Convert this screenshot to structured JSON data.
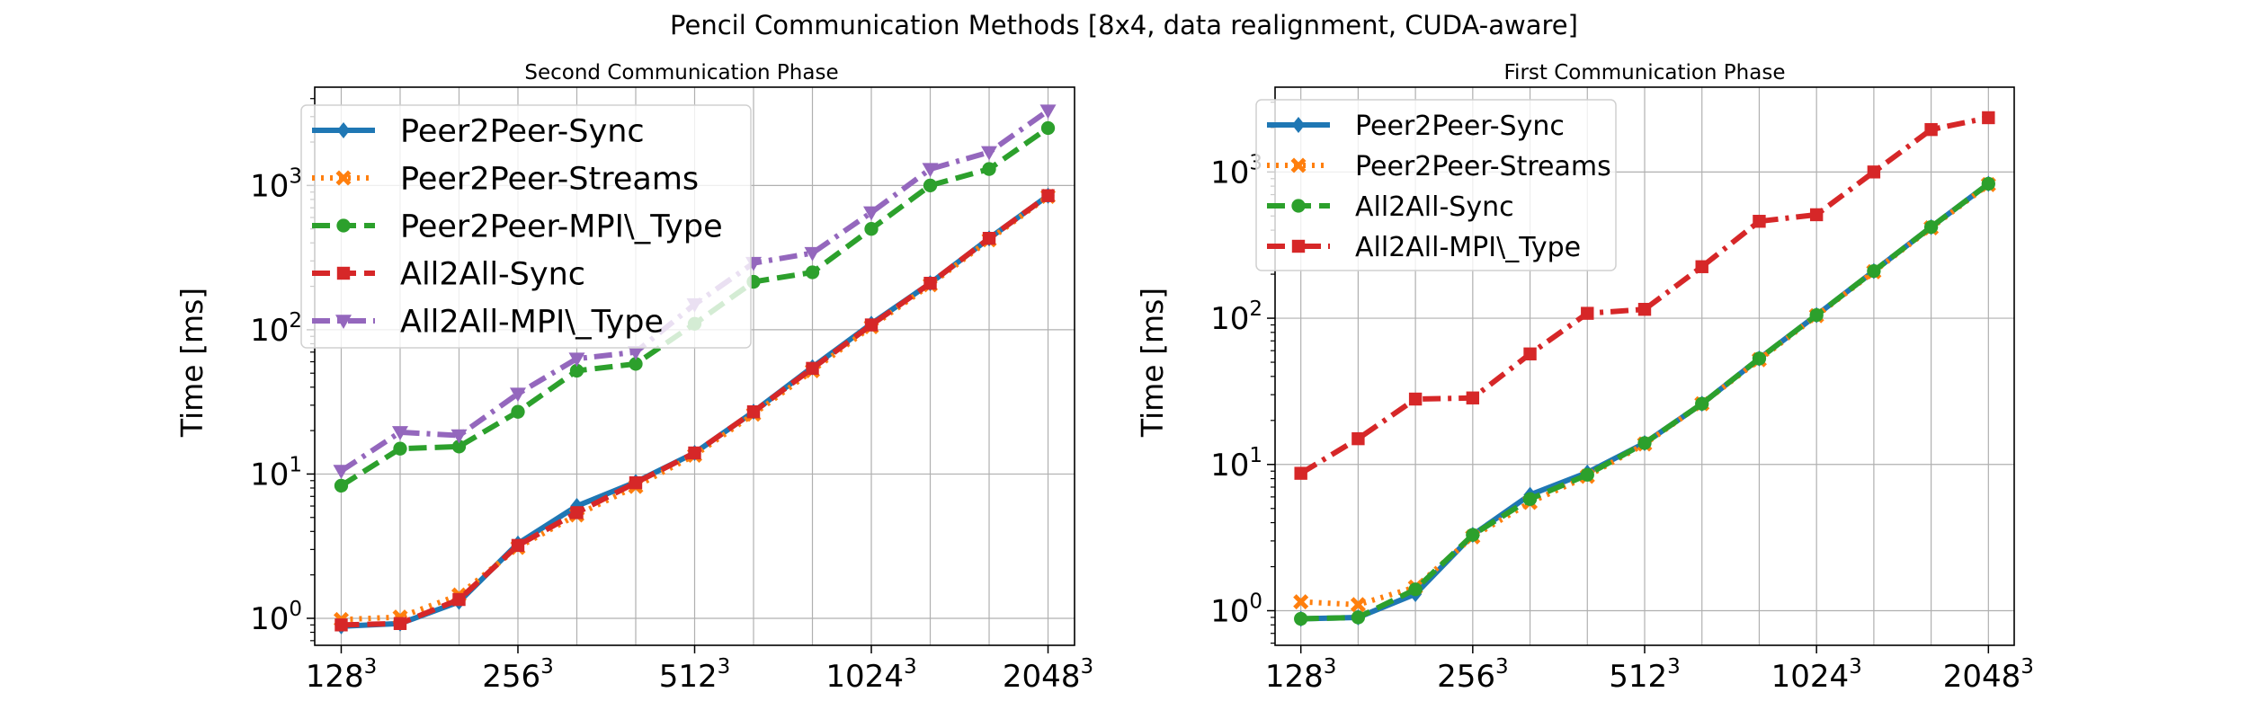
{
  "figure": {
    "suptitle": "Pencil Communication Methods [8x4, data realignment, CUDA-aware]"
  },
  "colors": {
    "blue": "#1f77b4",
    "orange": "#ff7f0e",
    "green": "#2ca02c",
    "red": "#d62728",
    "purple": "#9467bd",
    "grid": "#b0b0b0"
  },
  "chart_data": [
    {
      "type": "line",
      "title": "Second Communication Phase",
      "ylabel": "Time [ms]",
      "xlabel": "",
      "yscale": "log",
      "ylim": [
        0.65,
        4800
      ],
      "xlim": [
        -0.45,
        12.45
      ],
      "grid": true,
      "legend_position": "top-left",
      "x": [
        0,
        1,
        2,
        3,
        4,
        5,
        6,
        7,
        8,
        9,
        10,
        11,
        12
      ],
      "xticks": [
        {
          "pos": 0,
          "base": "128",
          "exp": "3"
        },
        {
          "pos": 3,
          "base": "256",
          "exp": "3"
        },
        {
          "pos": 6,
          "base": "512",
          "exp": "3"
        },
        {
          "pos": 9,
          "base": "1024",
          "exp": "3"
        },
        {
          "pos": 12,
          "base": "2048",
          "exp": "3"
        }
      ],
      "yticks": [
        {
          "value": 1,
          "base": "10",
          "exp": "0"
        },
        {
          "value": 10,
          "base": "10",
          "exp": "1"
        },
        {
          "value": 100,
          "base": "10",
          "exp": "2"
        },
        {
          "value": 1000,
          "base": "10",
          "exp": "3"
        }
      ],
      "series": [
        {
          "name": "Peer2Peer-Sync",
          "color": "#1f77b4",
          "dash": "solid",
          "marker": "diamond",
          "values": [
            0.88,
            0.92,
            1.3,
            3.3,
            6.0,
            8.8,
            14,
            27,
            55,
            110,
            210,
            430,
            850
          ]
        },
        {
          "name": "Peer2Peer-Streams",
          "color": "#ff7f0e",
          "dash": "dotted",
          "marker": "x",
          "values": [
            0.98,
            1.02,
            1.45,
            3.1,
            5.2,
            8.2,
            13.5,
            26,
            52,
            105,
            205,
            420,
            840
          ]
        },
        {
          "name": "Peer2Peer-MPI\\_Type",
          "color": "#2ca02c",
          "dash": "dashed",
          "marker": "circle",
          "values": [
            8.3,
            15,
            15.5,
            27,
            52,
            58,
            110,
            215,
            250,
            500,
            1000,
            1300,
            2500
          ]
        },
        {
          "name": "All2All-Sync",
          "color": "#d62728",
          "dash": "dashed",
          "marker": "square",
          "values": [
            0.9,
            0.92,
            1.35,
            3.2,
            5.4,
            8.7,
            14,
            27,
            54,
            108,
            210,
            430,
            850
          ]
        },
        {
          "name": "All2All-MPI\\_Type",
          "color": "#9467bd",
          "dash": "dashdot",
          "marker": "triangle-down",
          "values": [
            10.5,
            19.5,
            18.5,
            36,
            63,
            70,
            150,
            290,
            340,
            650,
            1300,
            1700,
            3300
          ]
        }
      ]
    },
    {
      "type": "line",
      "title": "First Communication Phase",
      "ylabel": "Time [ms]",
      "xlabel": "",
      "yscale": "log",
      "ylim": [
        0.58,
        3800
      ],
      "xlim": [
        -0.45,
        12.45
      ],
      "grid": true,
      "legend_position": "top-left",
      "x": [
        0,
        1,
        2,
        3,
        4,
        5,
        6,
        7,
        8,
        9,
        10,
        11,
        12
      ],
      "xticks": [
        {
          "pos": 0,
          "base": "128",
          "exp": "3"
        },
        {
          "pos": 3,
          "base": "256",
          "exp": "3"
        },
        {
          "pos": 6,
          "base": "512",
          "exp": "3"
        },
        {
          "pos": 9,
          "base": "1024",
          "exp": "3"
        },
        {
          "pos": 12,
          "base": "2048",
          "exp": "3"
        }
      ],
      "yticks": [
        {
          "value": 1,
          "base": "10",
          "exp": "0"
        },
        {
          "value": 10,
          "base": "10",
          "exp": "1"
        },
        {
          "value": 100,
          "base": "10",
          "exp": "2"
        },
        {
          "value": 1000,
          "base": "10",
          "exp": "3"
        }
      ],
      "series": [
        {
          "name": "Peer2Peer-Sync",
          "color": "#1f77b4",
          "dash": "solid",
          "marker": "diamond",
          "values": [
            0.88,
            0.9,
            1.3,
            3.3,
            6.2,
            8.8,
            14,
            26,
            53,
            105,
            210,
            420,
            830
          ]
        },
        {
          "name": "Peer2Peer-Streams",
          "color": "#ff7f0e",
          "dash": "dotted",
          "marker": "x",
          "values": [
            1.15,
            1.1,
            1.45,
            3.2,
            5.5,
            8.3,
            13.8,
            26,
            52,
            104,
            208,
            415,
            820
          ]
        },
        {
          "name": "All2All-Sync",
          "color": "#2ca02c",
          "dash": "dashed",
          "marker": "circle",
          "values": [
            0.88,
            0.9,
            1.4,
            3.3,
            5.8,
            8.5,
            14,
            26,
            53,
            105,
            210,
            420,
            830
          ]
        },
        {
          "name": "All2All-MPI\\_Type",
          "color": "#d62728",
          "dash": "dashdot",
          "marker": "square",
          "values": [
            8.7,
            15,
            28,
            28.5,
            57,
            108,
            115,
            225,
            460,
            510,
            1000,
            1950,
            2350
          ]
        }
      ]
    }
  ]
}
